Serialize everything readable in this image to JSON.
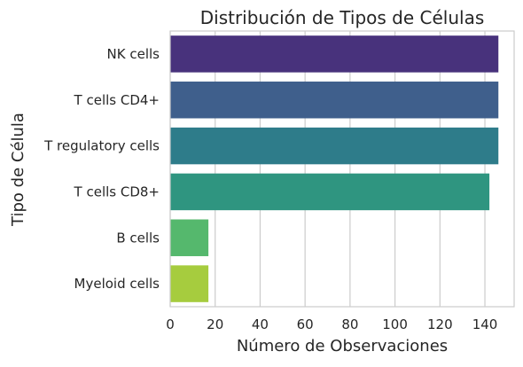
{
  "chart_data": {
    "type": "bar",
    "orientation": "horizontal",
    "title": "Distribución de Tipos de Células",
    "xlabel": "Número de Observaciones",
    "ylabel": "Tipo de Célula",
    "categories": [
      "NK cells",
      "T cells CD4+",
      "T regulatory cells",
      "T cells CD8+",
      "B cells",
      "Myeloid cells"
    ],
    "values": [
      146,
      146,
      146,
      142,
      17,
      17
    ],
    "xlim": [
      0,
      153
    ],
    "xticks": [
      "0",
      "20",
      "40",
      "60",
      "80",
      "100",
      "120",
      "140"
    ],
    "grid": true,
    "colors": [
      "#48327c",
      "#3f5f8c",
      "#2e7c8a",
      "#2f9580",
      "#55b86d",
      "#a6cc3e"
    ]
  }
}
